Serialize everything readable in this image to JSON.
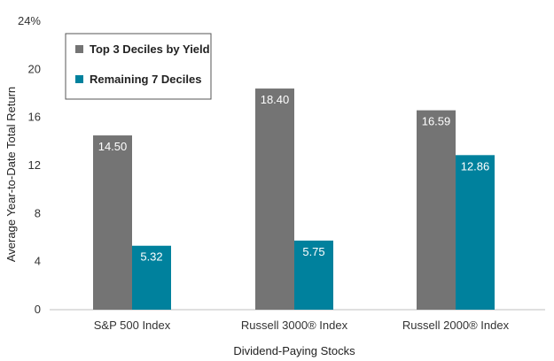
{
  "chart_data": {
    "type": "bar",
    "categories": [
      "S&P 500 Index",
      "Russell 3000® Index",
      "Russell 2000® Index"
    ],
    "series": [
      {
        "name": "Top 3 Deciles by Yield",
        "values": [
          14.5,
          18.4,
          16.59
        ],
        "color": "#747474"
      },
      {
        "name": "Remaining 7 Deciles",
        "values": [
          5.32,
          5.75,
          12.86
        ],
        "color": "#00819d"
      }
    ],
    "data_labels": [
      [
        "14.50",
        "18.40",
        "16.59"
      ],
      [
        "5.32",
        "5.75",
        "12.86"
      ]
    ],
    "yticks": [
      "0",
      "4",
      "8",
      "12",
      "16",
      "20",
      "24%"
    ],
    "ytick_values": [
      0,
      4,
      8,
      12,
      16,
      20,
      24
    ],
    "ylim": [
      0,
      24
    ],
    "xlabel": "Dividend-Paying Stocks",
    "ylabel": "Average Year-to-Date Total Return",
    "grid": false,
    "legend_position": "top-left"
  }
}
